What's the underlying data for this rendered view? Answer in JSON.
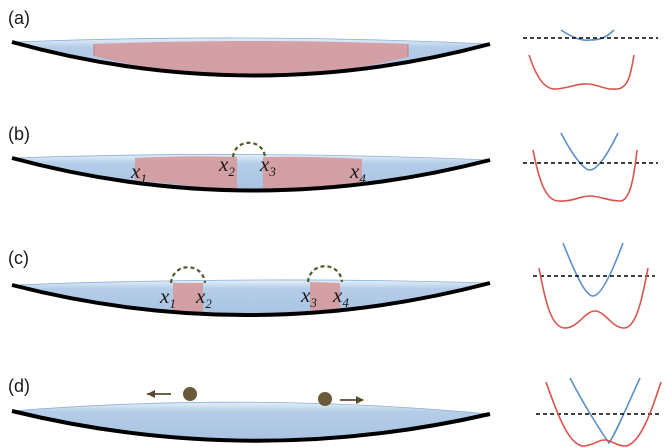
{
  "panels": [
    {
      "id": "a",
      "label": "(a)",
      "markers": []
    },
    {
      "id": "b",
      "label": "(b)",
      "markers": [
        {
          "base": "x",
          "sub": "1"
        },
        {
          "base": "x",
          "sub": "2"
        },
        {
          "base": "x",
          "sub": "3"
        },
        {
          "base": "x",
          "sub": "4"
        }
      ]
    },
    {
      "id": "c",
      "label": "(c)",
      "markers": [
        {
          "base": "x",
          "sub": "1"
        },
        {
          "base": "x",
          "sub": "2"
        },
        {
          "base": "x",
          "sub": "3"
        },
        {
          "base": "x",
          "sub": "4"
        }
      ]
    },
    {
      "id": "d",
      "label": "(d)",
      "markers": []
    }
  ],
  "colors": {
    "liquid": "#b4cde8",
    "liquid_edge": "#8db0d8",
    "domain": "#d69a9c",
    "domain_edge": "#c0393b",
    "substrate": "#000000",
    "upper_curve": "#5b8fc7",
    "lower_curve": "#d9534f",
    "dashed_line": "#000000",
    "bridge": "#4f5a2a",
    "droplet": "#6b5a3a"
  }
}
